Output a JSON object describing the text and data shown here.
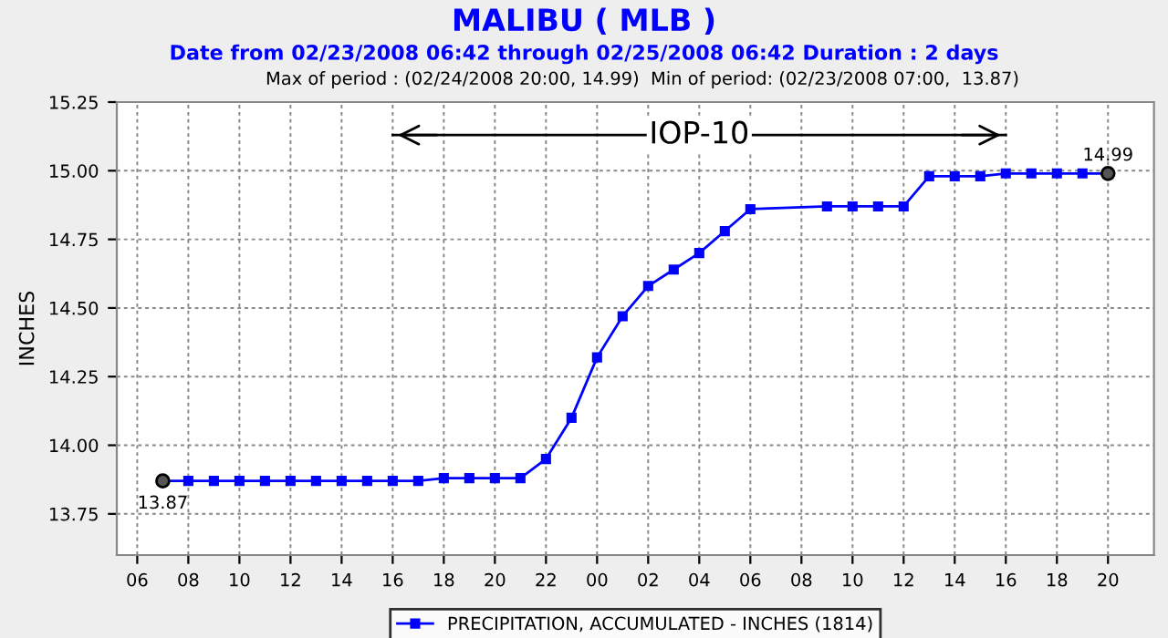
{
  "chart_data": {
    "type": "line",
    "title": "MALIBU ( MLB )",
    "subtitle": "Date from 02/23/2008 06:42 through 02/25/2008 06:42 Duration : 2 days",
    "ylabel": "INCHES",
    "series": [
      {
        "name": "PRECIPITATION, ACCUMULATED - INCHES (1814)",
        "color": "#0000ff",
        "x": [
          7,
          8,
          9,
          10,
          11,
          12,
          13,
          14,
          15,
          16,
          17,
          18,
          19,
          20,
          21,
          22,
          23,
          24,
          25,
          26,
          27,
          28,
          29,
          30,
          33,
          34,
          35,
          36,
          37,
          38,
          39,
          40,
          41,
          42,
          43,
          44
        ],
        "values": [
          13.87,
          13.87,
          13.87,
          13.87,
          13.87,
          13.87,
          13.87,
          13.87,
          13.87,
          13.87,
          13.87,
          13.88,
          13.88,
          13.88,
          13.88,
          13.95,
          14.1,
          14.32,
          14.47,
          14.58,
          14.64,
          14.7,
          14.78,
          14.86,
          14.87,
          14.87,
          14.87,
          14.87,
          14.98,
          14.98,
          14.98,
          14.99,
          14.99,
          14.99,
          14.99,
          14.99
        ],
        "value_labels": [
          "13.87",
          null,
          null,
          null,
          null,
          null,
          null,
          null,
          null,
          null,
          null,
          null,
          null,
          null,
          null,
          null,
          null,
          null,
          null,
          null,
          null,
          null,
          null,
          null,
          null,
          null,
          null,
          null,
          null,
          null,
          null,
          null,
          null,
          null,
          null,
          "14.99"
        ]
      },
      {
        "type": "line",
        "color": "#000000",
        "marker": "none",
        "x": [
          16,
          40
        ],
        "values": [
          15.13,
          15.13
        ]
      }
    ],
    "annotations": [
      "Max of period : (02/24/2008 20:00, 14.99)  Min of period: (02/23/2008 07:00,  13.87)",
      {
        "text": "IOP-10",
        "x": 28,
        "y": 15.13
      }
    ],
    "xlim": [
      5.2,
      45.8
    ],
    "ylim": [
      13.6,
      15.25
    ],
    "xticks": [
      {
        "value": 6,
        "label": "06"
      },
      {
        "value": 8,
        "label": "08"
      },
      {
        "value": 10,
        "label": "10"
      },
      {
        "value": 12,
        "label": "12"
      },
      {
        "value": 14,
        "label": "14"
      },
      {
        "value": 16,
        "label": "16"
      },
      {
        "value": 18,
        "label": "18"
      },
      {
        "value": 20,
        "label": "20"
      },
      {
        "value": 22,
        "label": "22"
      },
      {
        "value": 24,
        "label": "00"
      },
      {
        "value": 26,
        "label": "02"
      },
      {
        "value": 28,
        "label": "04"
      },
      {
        "value": 30,
        "label": "06"
      },
      {
        "value": 32,
        "label": "08"
      },
      {
        "value": 34,
        "label": "10"
      },
      {
        "value": 36,
        "label": "12"
      },
      {
        "value": 38,
        "label": "14"
      },
      {
        "value": 40,
        "label": "16"
      },
      {
        "value": 42,
        "label": "18"
      },
      {
        "value": 44,
        "label": "20"
      }
    ],
    "yticks": [
      {
        "value": 13.75,
        "label": "13.75"
      },
      {
        "value": 14,
        "label": "14.00"
      },
      {
        "value": 14.25,
        "label": "14.25"
      },
      {
        "value": 14.5,
        "label": "14.50"
      },
      {
        "value": 14.75,
        "label": "14.75"
      },
      {
        "value": 15,
        "label": "15.00"
      },
      {
        "value": 15.25,
        "label": "15.25"
      }
    ],
    "grid": true,
    "legend": "bottom",
    "marker": "square",
    "line_style": "solid"
  }
}
